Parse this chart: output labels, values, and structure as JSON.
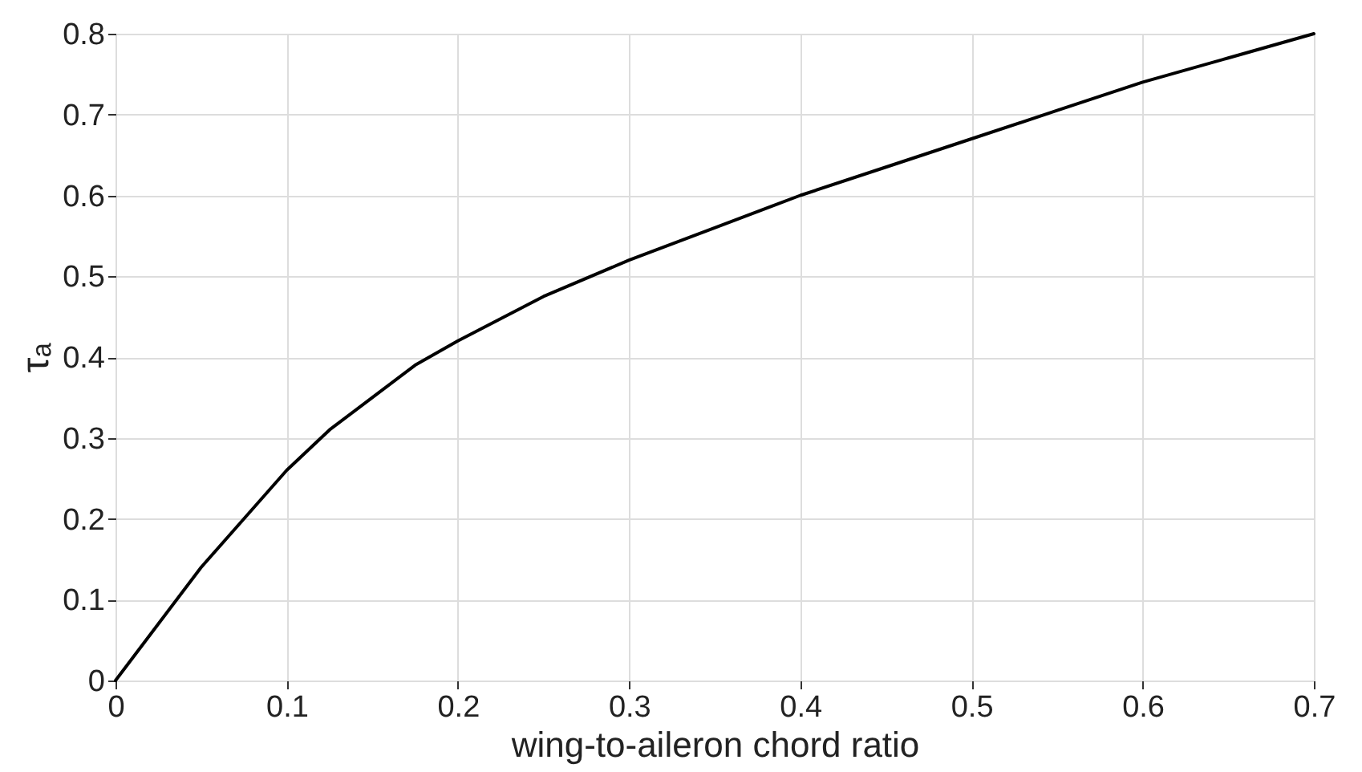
{
  "chart_data": {
    "type": "line",
    "xlabel": "wing-to-aileron chord ratio",
    "ylabel": "τₐ",
    "x": [
      0,
      0.025,
      0.05,
      0.075,
      0.1,
      0.125,
      0.15,
      0.175,
      0.2,
      0.25,
      0.3,
      0.35,
      0.4,
      0.45,
      0.5,
      0.55,
      0.6,
      0.65,
      0.7
    ],
    "series": [
      {
        "color": "#000000",
        "values": [
          0,
          0.07,
          0.14,
          0.2,
          0.26,
          0.31,
          0.35,
          0.39,
          0.42,
          0.475,
          0.52,
          0.56,
          0.6,
          0.635,
          0.67,
          0.705,
          0.74,
          0.77,
          0.8
        ]
      }
    ],
    "xlim": [
      0,
      0.7
    ],
    "xticks": [
      0,
      0.1,
      0.2,
      0.3,
      0.4,
      0.5,
      0.6,
      0.7
    ],
    "ylim": [
      0,
      0.8
    ],
    "yticks": [
      0,
      0.1,
      0.2,
      0.3,
      0.4,
      0.5,
      0.6,
      0.7,
      0.8
    ],
    "grid": true,
    "marker": "none",
    "line_style": "solid"
  }
}
